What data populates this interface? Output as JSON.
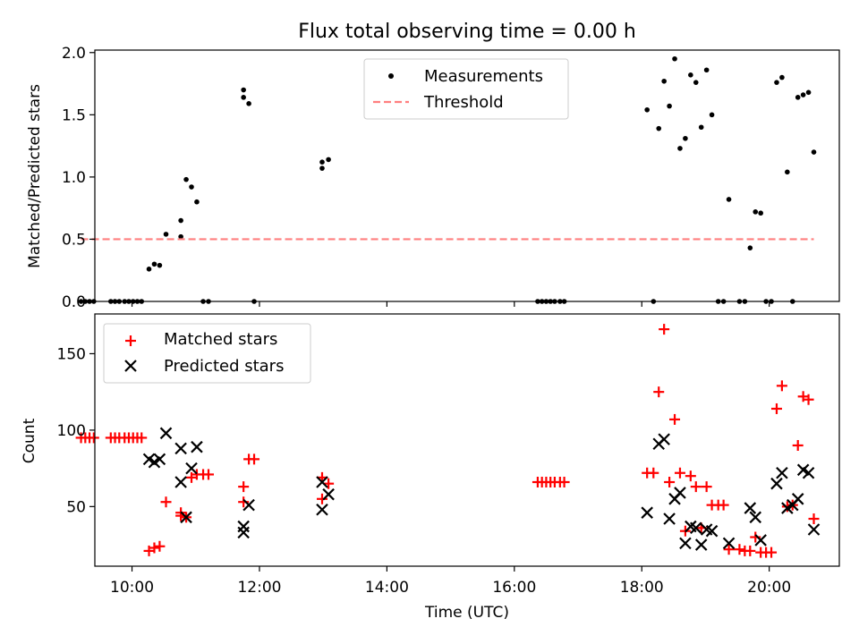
{
  "figure": {
    "title": "Flux total observing time = 0.00 h",
    "xlabel": "Time (UTC)",
    "xticks": [
      "10:00",
      "12:00",
      "14:00",
      "16:00",
      "18:00",
      "20:00"
    ]
  },
  "chart_data": [
    {
      "type": "scatter",
      "ylabel": "Matched/Predicted stars",
      "xlim": [
        "09:25",
        "21:06"
      ],
      "ylim": [
        0,
        2.02
      ],
      "yticks": [
        "0.0",
        "0.5",
        "1.0",
        "1.5",
        "2.0"
      ],
      "legend_position": "top-center",
      "grid": false,
      "series": [
        {
          "name": "Measurements",
          "color": "#000000",
          "marker": "dot",
          "points": [
            [
              "09:12",
              0
            ],
            [
              "09:16",
              0
            ],
            [
              "09:20",
              0
            ],
            [
              "09:24",
              0
            ],
            [
              "09:40",
              0
            ],
            [
              "09:44",
              0
            ],
            [
              "09:48",
              0
            ],
            [
              "09:53",
              0
            ],
            [
              "09:57",
              0
            ],
            [
              "10:01",
              0
            ],
            [
              "10:05",
              0
            ],
            [
              "10:09",
              0
            ],
            [
              "10:16",
              0.26
            ],
            [
              "10:21",
              0.3
            ],
            [
              "10:26",
              0.29
            ],
            [
              "10:32",
              0.54
            ],
            [
              "10:46",
              0.52
            ],
            [
              "10:46",
              0.65
            ],
            [
              "10:51",
              0.98
            ],
            [
              "10:56",
              0.92
            ],
            [
              "11:01",
              0.8
            ],
            [
              "11:07",
              0
            ],
            [
              "11:12",
              0
            ],
            [
              "11:45",
              1.7
            ],
            [
              "11:45",
              1.64
            ],
            [
              "11:50",
              1.59
            ],
            [
              "11:55",
              0
            ],
            [
              "12:59",
              1.12
            ],
            [
              "12:59",
              1.07
            ],
            [
              "13:05",
              1.14
            ],
            [
              "16:22",
              0
            ],
            [
              "16:26",
              0
            ],
            [
              "16:30",
              0
            ],
            [
              "16:34",
              0
            ],
            [
              "16:38",
              0
            ],
            [
              "16:43",
              0
            ],
            [
              "16:47",
              0
            ],
            [
              "18:05",
              1.54
            ],
            [
              "18:11",
              0
            ],
            [
              "18:16",
              1.39
            ],
            [
              "18:21",
              1.77
            ],
            [
              "18:26",
              1.57
            ],
            [
              "18:31",
              1.95
            ],
            [
              "18:36",
              1.23
            ],
            [
              "18:41",
              1.31
            ],
            [
              "18:46",
              1.82
            ],
            [
              "18:51",
              1.76
            ],
            [
              "18:56",
              1.4
            ],
            [
              "19:01",
              1.86
            ],
            [
              "19:06",
              1.5
            ],
            [
              "19:12",
              0
            ],
            [
              "19:17",
              0
            ],
            [
              "19:22",
              0.82
            ],
            [
              "19:32",
              0
            ],
            [
              "19:37",
              0
            ],
            [
              "19:42",
              0.43
            ],
            [
              "19:47",
              0.72
            ],
            [
              "19:52",
              0.71
            ],
            [
              "19:57",
              0
            ],
            [
              "20:02",
              0
            ],
            [
              "20:07",
              1.76
            ],
            [
              "20:12",
              1.8
            ],
            [
              "20:17",
              1.04
            ],
            [
              "20:22",
              0
            ],
            [
              "20:27",
              1.64
            ],
            [
              "20:32",
              1.66
            ],
            [
              "20:37",
              1.68
            ],
            [
              "20:42",
              1.2
            ]
          ]
        },
        {
          "name": "Threshold",
          "color": "#ff7f7f",
          "style": "dashed",
          "points": [
            [
              "09:12",
              0.5
            ],
            [
              "20:42",
              0.5
            ]
          ]
        }
      ]
    },
    {
      "type": "scatter",
      "ylabel": "Count",
      "xlim": [
        "09:25",
        "21:06"
      ],
      "ylim": [
        11,
        176
      ],
      "yticks": [
        "50",
        "100",
        "150"
      ],
      "legend_position": "top-left",
      "grid": false,
      "series": [
        {
          "name": "Matched stars",
          "color": "#ff0000",
          "marker": "plus",
          "points": [
            [
              "09:12",
              95
            ],
            [
              "09:16",
              95
            ],
            [
              "09:20",
              95
            ],
            [
              "09:24",
              95
            ],
            [
              "09:40",
              95
            ],
            [
              "09:44",
              95
            ],
            [
              "09:48",
              95
            ],
            [
              "09:53",
              95
            ],
            [
              "09:57",
              95
            ],
            [
              "10:01",
              95
            ],
            [
              "10:05",
              95
            ],
            [
              "10:09",
              95
            ],
            [
              "10:16",
              21
            ],
            [
              "10:21",
              23
            ],
            [
              "10:26",
              24
            ],
            [
              "10:32",
              53
            ],
            [
              "10:46",
              46
            ],
            [
              "10:46",
              44
            ],
            [
              "10:51",
              43
            ],
            [
              "10:56",
              69
            ],
            [
              "11:01",
              71
            ],
            [
              "11:07",
              71
            ],
            [
              "11:12",
              71
            ],
            [
              "11:45",
              63
            ],
            [
              "11:45",
              53
            ],
            [
              "11:50",
              81
            ],
            [
              "11:55",
              81
            ],
            [
              "12:59",
              69
            ],
            [
              "12:59",
              55
            ],
            [
              "13:05",
              65
            ],
            [
              "16:22",
              66
            ],
            [
              "16:26",
              66
            ],
            [
              "16:30",
              66
            ],
            [
              "16:34",
              66
            ],
            [
              "16:38",
              66
            ],
            [
              "16:43",
              66
            ],
            [
              "16:47",
              66
            ],
            [
              "18:05",
              72
            ],
            [
              "18:11",
              72
            ],
            [
              "18:16",
              125
            ],
            [
              "18:21",
              166
            ],
            [
              "18:26",
              66
            ],
            [
              "18:31",
              107
            ],
            [
              "18:36",
              72
            ],
            [
              "18:41",
              34
            ],
            [
              "18:46",
              70
            ],
            [
              "18:51",
              63
            ],
            [
              "18:56",
              36
            ],
            [
              "19:01",
              63
            ],
            [
              "19:06",
              51
            ],
            [
              "19:12",
              51
            ],
            [
              "19:17",
              51
            ],
            [
              "19:22",
              22
            ],
            [
              "19:32",
              22
            ],
            [
              "19:37",
              21
            ],
            [
              "19:42",
              21
            ],
            [
              "19:47",
              30
            ],
            [
              "19:52",
              20
            ],
            [
              "19:57",
              20
            ],
            [
              "20:02",
              20
            ],
            [
              "20:07",
              114
            ],
            [
              "20:12",
              129
            ],
            [
              "20:17",
              50
            ],
            [
              "20:22",
              51
            ],
            [
              "20:27",
              90
            ],
            [
              "20:32",
              122
            ],
            [
              "20:37",
              120
            ],
            [
              "20:42",
              42
            ]
          ]
        },
        {
          "name": "Predicted stars",
          "color": "#000000",
          "marker": "x",
          "points": [
            [
              "10:16",
              81
            ],
            [
              "10:21",
              79
            ],
            [
              "10:26",
              81
            ],
            [
              "10:32",
              98
            ],
            [
              "10:46",
              88
            ],
            [
              "10:46",
              66
            ],
            [
              "10:51",
              43
            ],
            [
              "10:56",
              75
            ],
            [
              "11:01",
              89
            ],
            [
              "11:45",
              37
            ],
            [
              "11:45",
              33
            ],
            [
              "11:50",
              51
            ],
            [
              "12:59",
              66
            ],
            [
              "12:59",
              48
            ],
            [
              "13:05",
              58
            ],
            [
              "18:05",
              46
            ],
            [
              "18:16",
              91
            ],
            [
              "18:21",
              94
            ],
            [
              "18:26",
              42
            ],
            [
              "18:31",
              55
            ],
            [
              "18:36",
              59
            ],
            [
              "18:41",
              26
            ],
            [
              "18:46",
              37
            ],
            [
              "18:51",
              36
            ],
            [
              "18:56",
              25
            ],
            [
              "19:01",
              35
            ],
            [
              "19:06",
              34
            ],
            [
              "19:22",
              26
            ],
            [
              "19:42",
              49
            ],
            [
              "19:47",
              43
            ],
            [
              "19:52",
              28
            ],
            [
              "20:07",
              65
            ],
            [
              "20:12",
              72
            ],
            [
              "20:17",
              49
            ],
            [
              "20:22",
              51
            ],
            [
              "20:27",
              55
            ],
            [
              "20:32",
              74
            ],
            [
              "20:37",
              72
            ],
            [
              "20:42",
              35
            ]
          ]
        }
      ]
    }
  ]
}
